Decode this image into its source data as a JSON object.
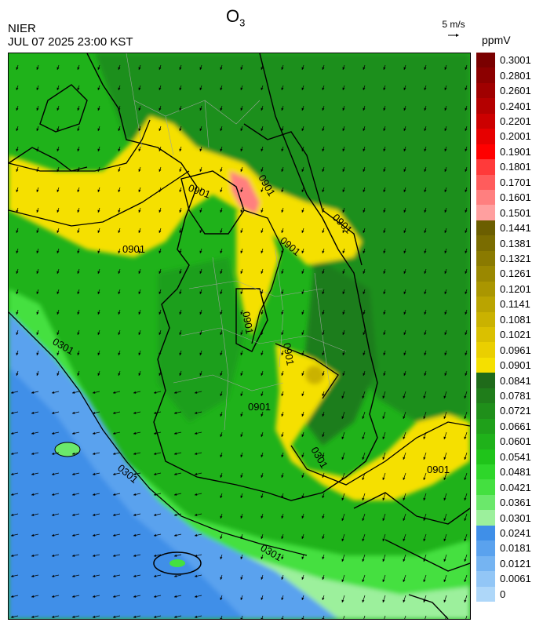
{
  "header": {
    "title": "O",
    "title_sub": "3",
    "agency": "NIER",
    "timestamp": "JUL 07 2025 23:00 KST",
    "wind_reference": "5 m/s",
    "units": "ppmV"
  },
  "contour_labels": [
    "0901",
    "0901",
    "0901",
    "0901",
    "0901",
    "0901",
    "0901",
    "0901",
    "0901",
    "0301",
    "0301",
    "0301",
    "0301"
  ],
  "legend": {
    "ticks": [
      "0.3001",
      "0.2801",
      "0.2601",
      "0.2401",
      "0.2201",
      "0.2001",
      "0.1901",
      "0.1801",
      "0.1701",
      "0.1601",
      "0.1501",
      "0.1441",
      "0.1381",
      "0.1321",
      "0.1261",
      "0.1201",
      "0.1141",
      "0.1081",
      "0.1021",
      "0.0961",
      "0.0901",
      "0.0841",
      "0.0781",
      "0.0721",
      "0.0661",
      "0.0601",
      "0.0541",
      "0.0481",
      "0.0421",
      "0.0361",
      "0.0301",
      "0.0241",
      "0.0181",
      "0.0121",
      "0.0061",
      "0"
    ],
    "colors": [
      "#7a0000",
      "#8c0000",
      "#a00000",
      "#b40000",
      "#cc0000",
      "#e60000",
      "#ff0000",
      "#ff3a3a",
      "#ff5c5c",
      "#ff7f7f",
      "#ff9f9f",
      "#6b5e00",
      "#7a6c00",
      "#8a7a00",
      "#9a8800",
      "#aa9600",
      "#baa400",
      "#cab200",
      "#dac000",
      "#eacf00",
      "#f5e000",
      "#1f6b1a",
      "#1f7d1a",
      "#1f8f1a",
      "#1fa01a",
      "#1fb21a",
      "#1fc41a",
      "#2ed62a",
      "#44e040",
      "#6be86b",
      "#9cf09c",
      "#3f8fe8",
      "#5aa2ee",
      "#75b4f2",
      "#92c6f6",
      "#aed7f9"
    ]
  }
}
